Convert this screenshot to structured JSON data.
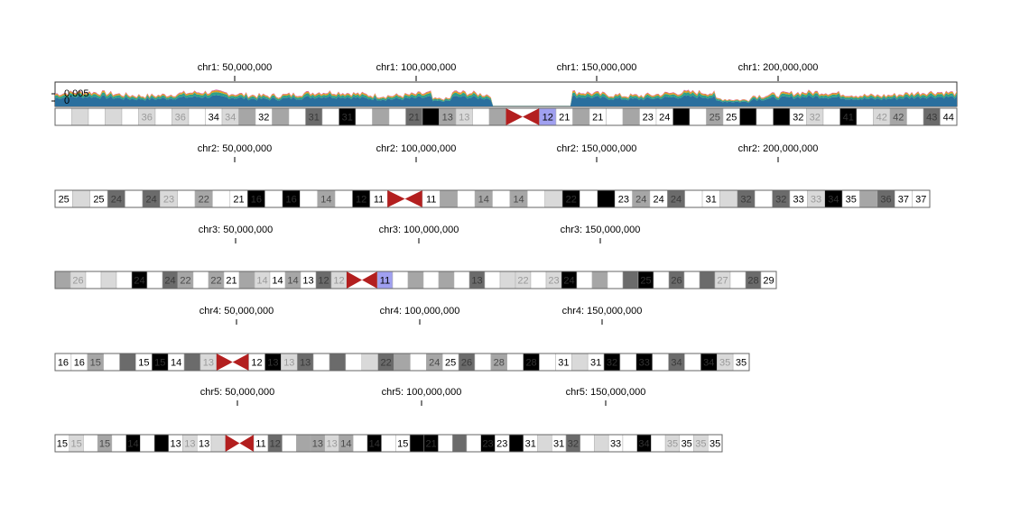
{
  "colors": {
    "band_gneg": "#ffffff",
    "band_gpos25": "#d9d9d9",
    "band_gpos50": "#a6a6a6",
    "band_gpos75": "#6b6b6b",
    "band_gpos100": "#000000",
    "band_gvar": "#a0a0f0",
    "centromere": "#b31f1f",
    "outline": "#666666",
    "track_series": [
      "#d94fa0",
      "#e0a020",
      "#2fa08a",
      "#2a6f9e"
    ]
  },
  "coverage_track": {
    "chromosome": "chr1",
    "tick_labels": [
      "0.005",
      "0"
    ],
    "series_colors": [
      "pink",
      "orange",
      "teal",
      "blue"
    ]
  },
  "chromosomes": [
    {
      "name": "chr1",
      "ticks": [
        "chr1: 50,000,000",
        "chr1: 100,000,000",
        "chr1: 150,000,000",
        "chr1: 200,000,000"
      ],
      "bands": [
        {
          "label": "",
          "stain": "gneg"
        },
        {
          "label": "",
          "stain": "gpos25"
        },
        {
          "label": "",
          "stain": "gneg"
        },
        {
          "label": "",
          "stain": "gpos25"
        },
        {
          "label": "",
          "stain": "gneg"
        },
        {
          "label": "36",
          "stain": "gpos25"
        },
        {
          "label": "",
          "stain": "gneg"
        },
        {
          "label": "36",
          "stain": "gpos25"
        },
        {
          "label": "",
          "stain": "gneg"
        },
        {
          "label": "34",
          "stain": "gneg"
        },
        {
          "label": "34",
          "stain": "gpos25"
        },
        {
          "label": "",
          "stain": "gpos50"
        },
        {
          "label": "32",
          "stain": "gneg"
        },
        {
          "label": "",
          "stain": "gpos50"
        },
        {
          "label": "",
          "stain": "gneg"
        },
        {
          "label": "31",
          "stain": "gpos75"
        },
        {
          "label": "",
          "stain": "gneg"
        },
        {
          "label": "31",
          "stain": "gpos100"
        },
        {
          "label": "",
          "stain": "gneg"
        },
        {
          "label": "",
          "stain": "gpos50"
        },
        {
          "label": "",
          "stain": "gneg"
        },
        {
          "label": "21",
          "stain": "gpos75"
        },
        {
          "label": "",
          "stain": "gpos100"
        },
        {
          "label": "13",
          "stain": "gpos50"
        },
        {
          "label": "13",
          "stain": "gpos25"
        },
        {
          "label": "",
          "stain": "gneg"
        },
        {
          "label": "",
          "stain": "gpos50"
        },
        {
          "label": "",
          "stain": "acen_p"
        },
        {
          "label": "",
          "stain": "acen_q"
        },
        {
          "label": "12",
          "stain": "gvar"
        },
        {
          "label": "21",
          "stain": "gneg"
        },
        {
          "label": "",
          "stain": "gpos50"
        },
        {
          "label": "21",
          "stain": "gneg"
        },
        {
          "label": "",
          "stain": "gneg"
        },
        {
          "label": "",
          "stain": "gpos50"
        },
        {
          "label": "23",
          "stain": "gneg"
        },
        {
          "label": "24",
          "stain": "gneg"
        },
        {
          "label": "",
          "stain": "gpos100"
        },
        {
          "label": "",
          "stain": "gneg"
        },
        {
          "label": "25",
          "stain": "gpos50"
        },
        {
          "label": "25",
          "stain": "gneg"
        },
        {
          "label": "",
          "stain": "gpos100"
        },
        {
          "label": "",
          "stain": "gneg"
        },
        {
          "label": "",
          "stain": "gpos100"
        },
        {
          "label": "32",
          "stain": "gneg"
        },
        {
          "label": "32",
          "stain": "gpos25"
        },
        {
          "label": "",
          "stain": "gneg"
        },
        {
          "label": "41",
          "stain": "gpos100"
        },
        {
          "label": "",
          "stain": "gneg"
        },
        {
          "label": "42",
          "stain": "gpos25"
        },
        {
          "label": "42",
          "stain": "gpos50"
        },
        {
          "label": "",
          "stain": "gneg"
        },
        {
          "label": "43",
          "stain": "gpos75"
        },
        {
          "label": "44",
          "stain": "gneg"
        }
      ]
    },
    {
      "name": "chr2",
      "ticks": [
        "chr2: 50,000,000",
        "chr2: 100,000,000",
        "chr2: 150,000,000",
        "chr2: 200,000,000"
      ],
      "bands": [
        {
          "label": "25",
          "stain": "gneg"
        },
        {
          "label": "",
          "stain": "gpos25"
        },
        {
          "label": "25",
          "stain": "gneg"
        },
        {
          "label": "24",
          "stain": "gpos75"
        },
        {
          "label": "",
          "stain": "gneg"
        },
        {
          "label": "24",
          "stain": "gpos75"
        },
        {
          "label": "23",
          "stain": "gpos25"
        },
        {
          "label": "",
          "stain": "gneg"
        },
        {
          "label": "22",
          "stain": "gpos50"
        },
        {
          "label": "",
          "stain": "gneg"
        },
        {
          "label": "21",
          "stain": "gneg"
        },
        {
          "label": "16",
          "stain": "gpos100"
        },
        {
          "label": "",
          "stain": "gneg"
        },
        {
          "label": "16",
          "stain": "gpos100"
        },
        {
          "label": "",
          "stain": "gneg"
        },
        {
          "label": "14",
          "stain": "gpos50"
        },
        {
          "label": "",
          "stain": "gneg"
        },
        {
          "label": "12",
          "stain": "gpos100"
        },
        {
          "label": "11",
          "stain": "gneg"
        },
        {
          "label": "",
          "stain": "acen_p"
        },
        {
          "label": "",
          "stain": "acen_q"
        },
        {
          "label": "11",
          "stain": "gneg"
        },
        {
          "label": "",
          "stain": "gpos50"
        },
        {
          "label": "",
          "stain": "gneg"
        },
        {
          "label": "14",
          "stain": "gpos50"
        },
        {
          "label": "",
          "stain": "gneg"
        },
        {
          "label": "14",
          "stain": "gpos50"
        },
        {
          "label": "",
          "stain": "gneg"
        },
        {
          "label": "",
          "stain": "gpos25"
        },
        {
          "label": "22",
          "stain": "gpos100"
        },
        {
          "label": "",
          "stain": "gneg"
        },
        {
          "label": "",
          "stain": "gpos100"
        },
        {
          "label": "23",
          "stain": "gneg"
        },
        {
          "label": "24",
          "stain": "gpos50"
        },
        {
          "label": "24",
          "stain": "gneg"
        },
        {
          "label": "24",
          "stain": "gpos75"
        },
        {
          "label": "",
          "stain": "gneg"
        },
        {
          "label": "31",
          "stain": "gneg"
        },
        {
          "label": "",
          "stain": "gpos25"
        },
        {
          "label": "32",
          "stain": "gpos75"
        },
        {
          "label": "",
          "stain": "gneg"
        },
        {
          "label": "32",
          "stain": "gpos75"
        },
        {
          "label": "33",
          "stain": "gneg"
        },
        {
          "label": "33",
          "stain": "gpos25"
        },
        {
          "label": "34",
          "stain": "gpos100"
        },
        {
          "label": "35",
          "stain": "gneg"
        },
        {
          "label": "",
          "stain": "gpos50"
        },
        {
          "label": "36",
          "stain": "gpos75"
        },
        {
          "label": "37",
          "stain": "gneg"
        },
        {
          "label": "37",
          "stain": "gneg"
        }
      ]
    },
    {
      "name": "chr3",
      "ticks": [
        "chr3: 50,000,000",
        "chr3: 100,000,000",
        "chr3: 150,000,000"
      ],
      "bands": [
        {
          "label": "",
          "stain": "gpos50"
        },
        {
          "label": "26",
          "stain": "gpos25"
        },
        {
          "label": "",
          "stain": "gneg"
        },
        {
          "label": "",
          "stain": "gpos25"
        },
        {
          "label": "",
          "stain": "gneg"
        },
        {
          "label": "24",
          "stain": "gpos100"
        },
        {
          "label": "",
          "stain": "gneg"
        },
        {
          "label": "24",
          "stain": "gpos75"
        },
        {
          "label": "22",
          "stain": "gpos50"
        },
        {
          "label": "",
          "stain": "gneg"
        },
        {
          "label": "22",
          "stain": "gpos50"
        },
        {
          "label": "21",
          "stain": "gneg"
        },
        {
          "label": "",
          "stain": "gpos50"
        },
        {
          "label": "14",
          "stain": "gpos25"
        },
        {
          "label": "14",
          "stain": "gneg"
        },
        {
          "label": "14",
          "stain": "gpos50"
        },
        {
          "label": "13",
          "stain": "gneg"
        },
        {
          "label": "12",
          "stain": "gpos75"
        },
        {
          "label": "12",
          "stain": "gpos25"
        },
        {
          "label": "",
          "stain": "acen_p"
        },
        {
          "label": "",
          "stain": "acen_q"
        },
        {
          "label": "11",
          "stain": "gvar"
        },
        {
          "label": "",
          "stain": "gneg"
        },
        {
          "label": "",
          "stain": "gpos50"
        },
        {
          "label": "",
          "stain": "gneg"
        },
        {
          "label": "",
          "stain": "gpos50"
        },
        {
          "label": "",
          "stain": "gneg"
        },
        {
          "label": "13",
          "stain": "gpos75"
        },
        {
          "label": "",
          "stain": "gneg"
        },
        {
          "label": "",
          "stain": "gpos25"
        },
        {
          "label": "22",
          "stain": "gpos25"
        },
        {
          "label": "",
          "stain": "gneg"
        },
        {
          "label": "23",
          "stain": "gpos25"
        },
        {
          "label": "24",
          "stain": "gpos100"
        },
        {
          "label": "",
          "stain": "gneg"
        },
        {
          "label": "",
          "stain": "gpos50"
        },
        {
          "label": "",
          "stain": "gneg"
        },
        {
          "label": "",
          "stain": "gpos75"
        },
        {
          "label": "25",
          "stain": "gpos100"
        },
        {
          "label": "",
          "stain": "gneg"
        },
        {
          "label": "26",
          "stain": "gpos75"
        },
        {
          "label": "",
          "stain": "gneg"
        },
        {
          "label": "",
          "stain": "gpos75"
        },
        {
          "label": "27",
          "stain": "gpos25"
        },
        {
          "label": "",
          "stain": "gneg"
        },
        {
          "label": "28",
          "stain": "gpos75"
        },
        {
          "label": "29",
          "stain": "gneg"
        }
      ]
    },
    {
      "name": "chr4",
      "ticks": [
        "chr4: 50,000,000",
        "chr4: 100,000,000",
        "chr4: 150,000,000"
      ],
      "bands": [
        {
          "label": "16",
          "stain": "gneg"
        },
        {
          "label": "16",
          "stain": "gneg"
        },
        {
          "label": "15",
          "stain": "gpos50"
        },
        {
          "label": "",
          "stain": "gneg"
        },
        {
          "label": "",
          "stain": "gpos75"
        },
        {
          "label": "15",
          "stain": "gneg"
        },
        {
          "label": "15",
          "stain": "gpos100"
        },
        {
          "label": "14",
          "stain": "gneg"
        },
        {
          "label": "",
          "stain": "gpos75"
        },
        {
          "label": "13",
          "stain": "gpos25"
        },
        {
          "label": "",
          "stain": "acen_p"
        },
        {
          "label": "",
          "stain": "acen_q"
        },
        {
          "label": "12",
          "stain": "gneg"
        },
        {
          "label": "13",
          "stain": "gpos100"
        },
        {
          "label": "13",
          "stain": "gpos25"
        },
        {
          "label": "13",
          "stain": "gpos75"
        },
        {
          "label": "",
          "stain": "gneg"
        },
        {
          "label": "",
          "stain": "gpos75"
        },
        {
          "label": "",
          "stain": "gneg"
        },
        {
          "label": "",
          "stain": "gpos25"
        },
        {
          "label": "22",
          "stain": "gpos75"
        },
        {
          "label": "",
          "stain": "gpos50"
        },
        {
          "label": "",
          "stain": "gneg"
        },
        {
          "label": "24",
          "stain": "gpos50"
        },
        {
          "label": "25",
          "stain": "gneg"
        },
        {
          "label": "26",
          "stain": "gpos75"
        },
        {
          "label": "",
          "stain": "gneg"
        },
        {
          "label": "28",
          "stain": "gpos50"
        },
        {
          "label": "",
          "stain": "gneg"
        },
        {
          "label": "28",
          "stain": "gpos100"
        },
        {
          "label": "",
          "stain": "gneg"
        },
        {
          "label": "31",
          "stain": "gneg"
        },
        {
          "label": "",
          "stain": "gpos25"
        },
        {
          "label": "31",
          "stain": "gneg"
        },
        {
          "label": "32",
          "stain": "gpos100"
        },
        {
          "label": "",
          "stain": "gneg"
        },
        {
          "label": "33",
          "stain": "gpos100"
        },
        {
          "label": "",
          "stain": "gneg"
        },
        {
          "label": "34",
          "stain": "gpos75"
        },
        {
          "label": "",
          "stain": "gneg"
        },
        {
          "label": "34",
          "stain": "gpos100"
        },
        {
          "label": "35",
          "stain": "gpos25"
        },
        {
          "label": "35",
          "stain": "gneg"
        }
      ]
    },
    {
      "name": "chr5",
      "ticks": [
        "chr5: 50,000,000",
        "chr5: 100,000,000",
        "chr5: 150,000,000"
      ],
      "bands": [
        {
          "label": "15",
          "stain": "gneg"
        },
        {
          "label": "15",
          "stain": "gpos25"
        },
        {
          "label": "",
          "stain": "gneg"
        },
        {
          "label": "15",
          "stain": "gpos50"
        },
        {
          "label": "",
          "stain": "gneg"
        },
        {
          "label": "14",
          "stain": "gpos100"
        },
        {
          "label": "",
          "stain": "gneg"
        },
        {
          "label": "",
          "stain": "gpos100"
        },
        {
          "label": "13",
          "stain": "gneg"
        },
        {
          "label": "13",
          "stain": "gpos25"
        },
        {
          "label": "13",
          "stain": "gneg"
        },
        {
          "label": "",
          "stain": "gpos25"
        },
        {
          "label": "",
          "stain": "acen_p"
        },
        {
          "label": "",
          "stain": "acen_q"
        },
        {
          "label": "11",
          "stain": "gneg"
        },
        {
          "label": "12",
          "stain": "gpos75"
        },
        {
          "label": "",
          "stain": "gneg"
        },
        {
          "label": "",
          "stain": "gpos50"
        },
        {
          "label": "13",
          "stain": "gpos50"
        },
        {
          "label": "13",
          "stain": "gpos25"
        },
        {
          "label": "14",
          "stain": "gpos50"
        },
        {
          "label": "",
          "stain": "gneg"
        },
        {
          "label": "14",
          "stain": "gpos100"
        },
        {
          "label": "",
          "stain": "gneg"
        },
        {
          "label": "15",
          "stain": "gneg"
        },
        {
          "label": "",
          "stain": "gpos100"
        },
        {
          "label": "21",
          "stain": "gpos100"
        },
        {
          "label": "",
          "stain": "gneg"
        },
        {
          "label": "",
          "stain": "gpos75"
        },
        {
          "label": "",
          "stain": "gneg"
        },
        {
          "label": "23",
          "stain": "gpos100"
        },
        {
          "label": "23",
          "stain": "gneg"
        },
        {
          "label": "",
          "stain": "gpos100"
        },
        {
          "label": "31",
          "stain": "gneg"
        },
        {
          "label": "",
          "stain": "gpos25"
        },
        {
          "label": "31",
          "stain": "gneg"
        },
        {
          "label": "32",
          "stain": "gpos75"
        },
        {
          "label": "",
          "stain": "gneg"
        },
        {
          "label": "",
          "stain": "gpos25"
        },
        {
          "label": "33",
          "stain": "gneg"
        },
        {
          "label": "",
          "stain": "gneg"
        },
        {
          "label": "34",
          "stain": "gpos100"
        },
        {
          "label": "",
          "stain": "gneg"
        },
        {
          "label": "35",
          "stain": "gpos25"
        },
        {
          "label": "35",
          "stain": "gneg"
        },
        {
          "label": "35",
          "stain": "gpos25"
        },
        {
          "label": "35",
          "stain": "gneg"
        }
      ]
    }
  ]
}
